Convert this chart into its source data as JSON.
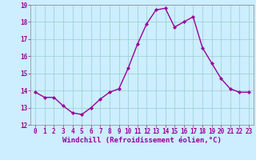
{
  "x": [
    0,
    1,
    2,
    3,
    4,
    5,
    6,
    7,
    8,
    9,
    10,
    11,
    12,
    13,
    14,
    15,
    16,
    17,
    18,
    19,
    20,
    21,
    22,
    23
  ],
  "y": [
    13.9,
    13.6,
    13.6,
    13.1,
    12.7,
    12.6,
    13.0,
    13.5,
    13.9,
    14.1,
    15.3,
    16.7,
    17.9,
    18.7,
    18.8,
    17.7,
    18.0,
    18.3,
    16.5,
    15.6,
    14.7,
    14.1,
    13.9,
    13.9
  ],
  "line_color": "#990099",
  "marker": "D",
  "marker_size": 2.0,
  "bg_color": "#cceeff",
  "grid_color": "#99cccc",
  "xlabel": "Windchill (Refroidissement éolien,°C)",
  "ylim": [
    12,
    19
  ],
  "xlim_min": -0.5,
  "xlim_max": 23.5,
  "yticks": [
    12,
    13,
    14,
    15,
    16,
    17,
    18,
    19
  ],
  "xticks": [
    0,
    1,
    2,
    3,
    4,
    5,
    6,
    7,
    8,
    9,
    10,
    11,
    12,
    13,
    14,
    15,
    16,
    17,
    18,
    19,
    20,
    21,
    22,
    23
  ],
  "tick_color": "#990099",
  "tick_labelsize": 5.5,
  "xlabel_fontsize": 6.5,
  "line_width": 1.0,
  "spine_color": "#888899"
}
